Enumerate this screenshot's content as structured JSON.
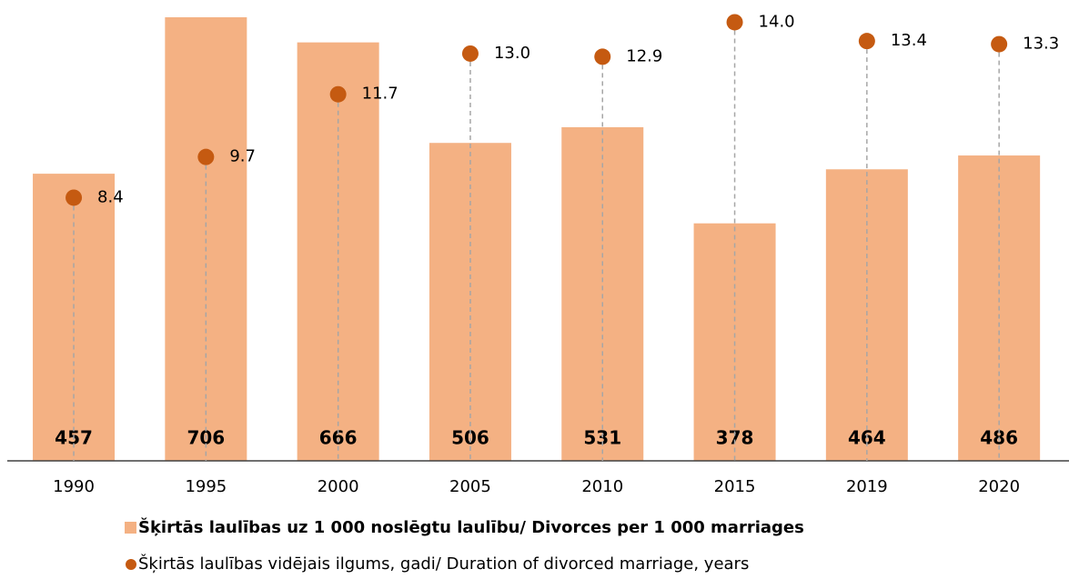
{
  "chart_data": {
    "type": "bar+scatter",
    "categories": [
      "1990",
      "1995",
      "2000",
      "2005",
      "2010",
      "2015",
      "2019",
      "2020"
    ],
    "series": [
      {
        "name": "Šķirtās laulības uz 1 000 noslēgtu laulību/ Divorces per 1 000 marriages",
        "type": "bar",
        "color": "#f4b183",
        "values": [
          457,
          706,
          666,
          506,
          531,
          378,
          464,
          486
        ]
      },
      {
        "name": "Šķirtās laulības vidējais ilgums, gadi/ Duration of divorced marriage, years",
        "type": "scatter",
        "axis": "y2",
        "color": "#c55a11",
        "values": [
          8.4,
          9.7,
          11.7,
          13.0,
          12.9,
          14.0,
          13.4,
          13.3
        ],
        "value_labels": [
          "8.4",
          "9.7",
          "11.7",
          "13.0",
          "12.9",
          "14.0",
          "13.4",
          "13.3"
        ]
      }
    ],
    "ylim": [
      0,
      719
    ],
    "y2lim": [
      0,
      14.42
    ],
    "legend": "bottom"
  }
}
